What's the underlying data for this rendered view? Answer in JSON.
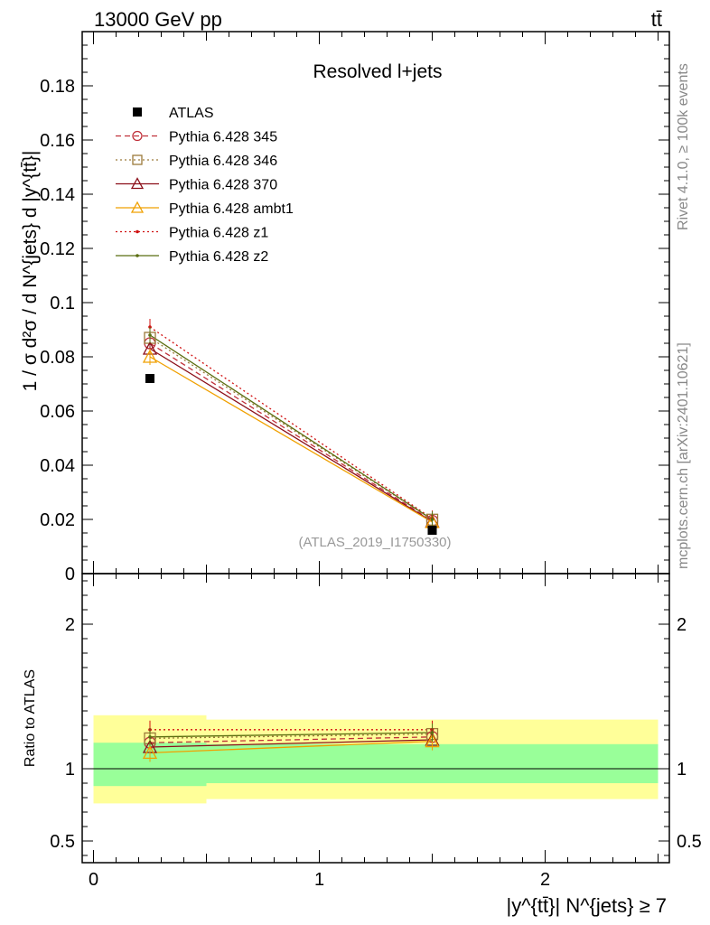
{
  "header": {
    "process": "13000 GeV pp",
    "channel": "tt̄"
  },
  "side_labels": {
    "rivet": "Rivet 4.1.0, ≥ 100k events",
    "mcplots": "mcplots.cern.ch [arXiv:2401.10621]"
  },
  "chart_data": {
    "type": "line",
    "title": "Resolved l+jets",
    "analysis_id": "(ATLAS_2019_I1750330)",
    "ylabel_main": "1 / σ d²σ / d N^{jets} d |y^{tt̄}|",
    "ylabel_ratio": "Ratio to ATLAS",
    "xlabel": "|y^{tt̄}| N^{jets} ≥ 7",
    "xlim": [
      -0.05,
      2.55
    ],
    "ylim_main": [
      0,
      0.2
    ],
    "ylim_ratio": [
      0.35,
      2.35
    ],
    "x_ticks": [
      "0",
      "1",
      "2"
    ],
    "y_ticks_main": [
      "0",
      "0.02",
      "0.04",
      "0.06",
      "0.08",
      "0.1",
      "0.12",
      "0.14",
      "0.16",
      "0.18"
    ],
    "y_ticks_ratio": [
      "0.5",
      "1",
      "2"
    ],
    "bins": [
      [
        0,
        0.5
      ],
      [
        0.5,
        2.5
      ]
    ],
    "x": [
      0.25,
      1.5
    ],
    "data": {
      "name": "ATLAS",
      "values": [
        0.072,
        0.016
      ]
    },
    "series": [
      {
        "name": "Pythia 6.428 345",
        "values": [
          0.085,
          0.0195
        ],
        "ratio": [
          1.18,
          1.22
        ],
        "color": "#c0303a",
        "dash": "6,4",
        "marker": "circle"
      },
      {
        "name": "Pythia 6.428 346",
        "values": [
          0.087,
          0.0199
        ],
        "ratio": [
          1.21,
          1.24
        ],
        "color": "#9c7a3a",
        "dash": "2,3",
        "marker": "square"
      },
      {
        "name": "Pythia 6.428 370",
        "values": [
          0.083,
          0.0192
        ],
        "ratio": [
          1.15,
          1.2
        ],
        "color": "#8b0e18",
        "dash": "",
        "marker": "triangle"
      },
      {
        "name": "Pythia 6.428 ambt1",
        "values": [
          0.08,
          0.019
        ],
        "ratio": [
          1.11,
          1.19
        ],
        "color": "#f0a000",
        "dash": "",
        "marker": "triangle"
      },
      {
        "name": "Pythia 6.428 z1",
        "values": [
          0.091,
          0.0203
        ],
        "ratio": [
          1.27,
          1.27
        ],
        "color": "#d01010",
        "dash": "2,3",
        "marker": "dot"
      },
      {
        "name": "Pythia 6.428 z2",
        "values": [
          0.088,
          0.02
        ],
        "ratio": [
          1.22,
          1.25
        ],
        "color": "#5a6d10",
        "dash": "",
        "marker": "dot"
      }
    ],
    "error_bands": {
      "inner": {
        "lo": [
          0.88,
          0.9
        ],
        "hi": [
          1.18,
          1.17
        ],
        "color": "#99ff99"
      },
      "outer": {
        "lo": [
          0.76,
          0.79
        ],
        "hi": [
          1.37,
          1.34
        ],
        "color": "#ffff99"
      }
    }
  }
}
